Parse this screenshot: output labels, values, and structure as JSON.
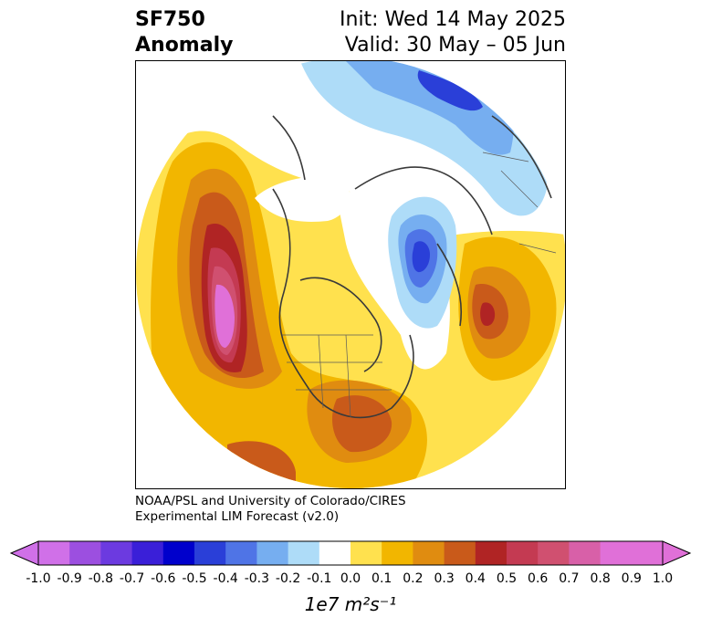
{
  "header": {
    "variable": "SF750",
    "kind": "Anomaly",
    "init": "Init: Wed 14 May 2025",
    "valid": "Valid: 30 May – 05 Jun"
  },
  "credit": {
    "line1": "NOAA/PSL and University of Colorado/CIRES",
    "line2": "Experimental LIM Forecast (v2.0)"
  },
  "colorbar": {
    "unit_label": "1e7 m²s⁻¹",
    "ticks": [
      "-1.0",
      "-0.9",
      "-0.8",
      "-0.7",
      "-0.6",
      "-0.5",
      "-0.4",
      "-0.3",
      "-0.2",
      "-0.1",
      "0.0",
      "0.1",
      "0.2",
      "0.3",
      "0.4",
      "0.5",
      "0.6",
      "0.7",
      "0.8",
      "0.9",
      "1.0"
    ],
    "colors": [
      "#9c4fe0",
      "#6c3ae0",
      "#3a1fd8",
      "#0000cc",
      "#2a3fd8",
      "#4f74e6",
      "#76aef0",
      "#aedcf8",
      "#ffffff",
      "#ffe14e",
      "#f2b600",
      "#e08c10",
      "#c95a1a",
      "#b02424",
      "#c43a52",
      "#d05070",
      "#d860a8",
      "#e070d8"
    ],
    "low_extend_color": "#d070e8",
    "high_extend_color": "#e070d8"
  }
}
